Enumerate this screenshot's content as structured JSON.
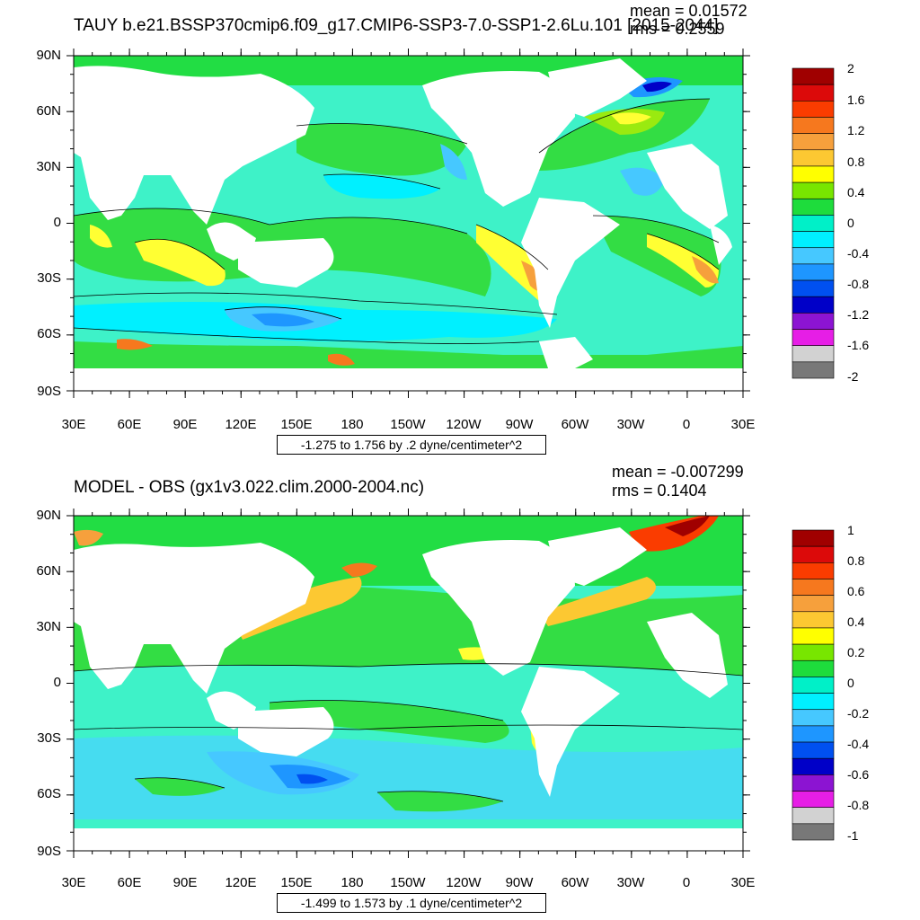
{
  "chart_data": [
    {
      "type": "heatmap",
      "title": "TAUY b.e21.BSSP370cmip6.f09_g17.CMIP6-SSP3-7.0-SSP1-2.6Lu.101 [2015-2044]",
      "mean_label": "mean = 0.01572",
      "rms_label": "rms = 0.2559",
      "contour_info": "-1.275 to 1.756 by .2 dyne/centimeter^2",
      "x_ticks": [
        "30E",
        "60E",
        "90E",
        "120E",
        "150E",
        "180",
        "150W",
        "120W",
        "90W",
        "60W",
        "30W",
        "0",
        "30E"
      ],
      "y_ticks": [
        "90N",
        "60N",
        "30N",
        "0",
        "30S",
        "60S",
        "90S"
      ],
      "colorbar_labels": [
        "2",
        "1.6",
        "1.2",
        "0.8",
        "0.4",
        "0",
        "-0.4",
        "-0.8",
        "-1.2",
        "-1.6",
        "-2"
      ],
      "colorbar_colors": [
        "#a00000",
        "#dc0a0a",
        "#fa3c00",
        "#f6781e",
        "#f6a03c",
        "#fcc832",
        "#ffff00",
        "#78e600",
        "#1edc3c",
        "#00f0c8",
        "#00f0ff",
        "#46c8ff",
        "#1e96ff",
        "#0050f0",
        "#0000c8",
        "#8c14d2",
        "#e61ee6",
        "#d2d2d2",
        "#787878"
      ],
      "colorbar_range": [
        -2,
        2
      ]
    },
    {
      "type": "heatmap",
      "title": "MODEL - OBS (gx1v3.022.clim.2000-2004.nc)",
      "mean_label": "mean = -0.007299",
      "rms_label": "rms = 0.1404",
      "contour_info": "-1.499 to 1.573 by .1 dyne/centimeter^2",
      "x_ticks": [
        "30E",
        "60E",
        "90E",
        "120E",
        "150E",
        "180",
        "150W",
        "120W",
        "90W",
        "60W",
        "30W",
        "0",
        "30E"
      ],
      "y_ticks": [
        "90N",
        "60N",
        "30N",
        "0",
        "30S",
        "60S",
        "90S"
      ],
      "colorbar_labels": [
        "1",
        "0.8",
        "0.6",
        "0.4",
        "0.2",
        "0",
        "-0.2",
        "-0.4",
        "-0.6",
        "-0.8",
        "-1"
      ],
      "colorbar_colors": [
        "#a00000",
        "#dc0a0a",
        "#fa3c00",
        "#f6781e",
        "#f6a03c",
        "#fcc832",
        "#ffff00",
        "#78e600",
        "#1edc3c",
        "#00f0c8",
        "#00f0ff",
        "#46c8ff",
        "#1e96ff",
        "#0050f0",
        "#0000c8",
        "#8c14d2",
        "#e61ee6",
        "#d2d2d2",
        "#787878"
      ],
      "colorbar_range": [
        -1,
        1
      ]
    }
  ]
}
